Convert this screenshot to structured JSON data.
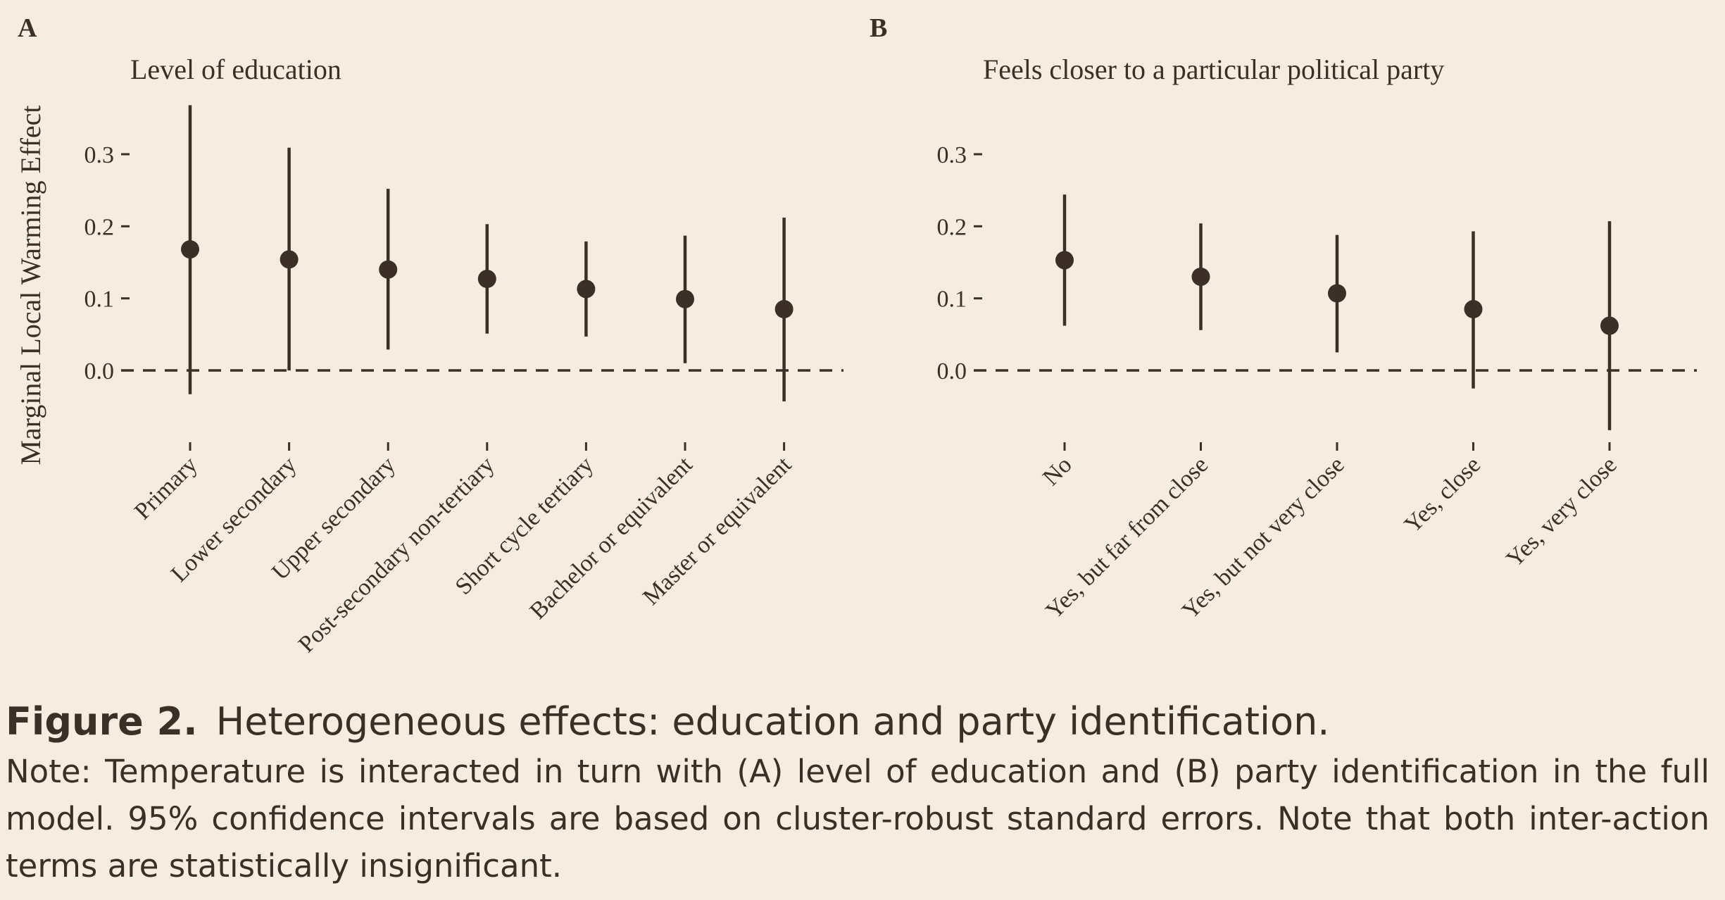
{
  "figure": {
    "label": "Figure 2.",
    "title": "Heterogeneous effects: education and party identification.",
    "note": "Note: Temperature is interacted in turn with (A) level of education and (B) party identification in the full model. 95% confidence intervals are based on cluster-robust standard errors. Note that both inter-action terms are statistically insignificant."
  },
  "chart_data": [
    {
      "type": "scatter",
      "panel_label": "A",
      "title": "Level of education",
      "xlabel": "",
      "ylabel": "Marginal Local Warming Effect",
      "categories": [
        "Primary",
        "Lower secondary",
        "Upper secondary",
        "Post-secondary non-tertiary",
        "Short cycle tertiary",
        "Bachelor or equivalent",
        "Master or equivalent"
      ],
      "values": [
        0.168,
        0.154,
        0.14,
        0.127,
        0.113,
        0.099,
        0.085
      ],
      "ci_lower": [
        -0.033,
        0.0,
        0.029,
        0.051,
        0.047,
        0.01,
        -0.043
      ],
      "ci_upper": [
        0.368,
        0.309,
        0.252,
        0.203,
        0.179,
        0.187,
        0.212
      ],
      "yticks": [
        0.0,
        0.1,
        0.2,
        0.3
      ],
      "ytick_labels": [
        "0.0",
        "0.1",
        "0.2",
        "0.3"
      ],
      "ylim": [
        -0.085,
        0.395
      ],
      "reference_line": 0,
      "grid": false
    },
    {
      "type": "scatter",
      "panel_label": "B",
      "title": "Feels closer to a particular political party",
      "xlabel": "",
      "ylabel": "",
      "categories": [
        "No",
        "Yes, but far from close",
        "Yes, but not very close",
        "Yes, close",
        "Yes, very close"
      ],
      "values": [
        0.153,
        0.13,
        0.107,
        0.085,
        0.062
      ],
      "ci_lower": [
        0.062,
        0.056,
        0.025,
        -0.025,
        -0.083
      ],
      "ci_upper": [
        0.244,
        0.204,
        0.188,
        0.193,
        0.207
      ],
      "yticks": [
        0.0,
        0.1,
        0.2,
        0.3
      ],
      "ytick_labels": [
        "0.0",
        "0.1",
        "0.2",
        "0.3"
      ],
      "ylim": [
        -0.085,
        0.395
      ],
      "reference_line": 0,
      "grid": false
    }
  ],
  "colors": {
    "background": "#f5eee0",
    "ink": "#3b2f27"
  }
}
